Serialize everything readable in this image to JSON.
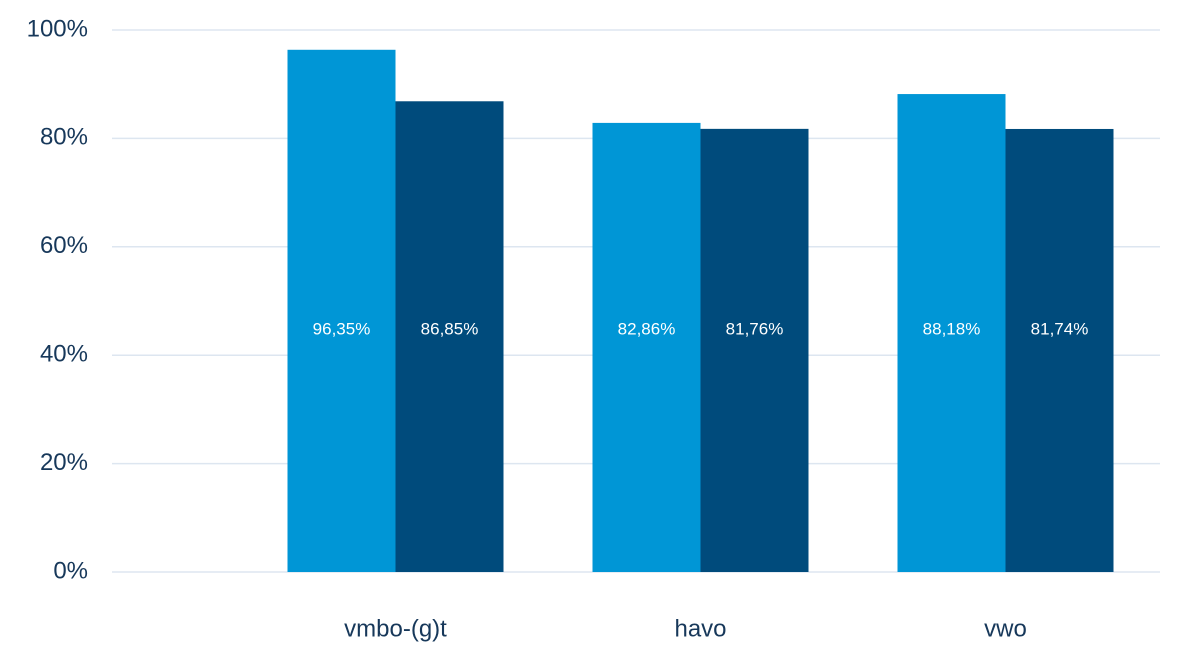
{
  "chart_data": {
    "type": "bar",
    "categories": [
      "vmbo-(g)t",
      "havo",
      "vwo"
    ],
    "series": [
      {
        "color": "#0096d6",
        "values": [
          96.35,
          82.86,
          88.18
        ],
        "value_labels": [
          "96,35%",
          "82,86%",
          "88,18%"
        ]
      },
      {
        "color": "#004b7c",
        "values": [
          86.85,
          81.76,
          81.74
        ],
        "value_labels": [
          "86,85%",
          "81,76%",
          "81,74%"
        ]
      }
    ],
    "ylim": [
      0,
      100
    ],
    "yticks": [
      {
        "value": 0,
        "label": "0%"
      },
      {
        "value": 20,
        "label": "20%"
      },
      {
        "value": 40,
        "label": "40%"
      },
      {
        "value": 60,
        "label": "60%"
      },
      {
        "value": 80,
        "label": "80%"
      },
      {
        "value": 100,
        "label": "100%"
      }
    ],
    "grid": true
  }
}
